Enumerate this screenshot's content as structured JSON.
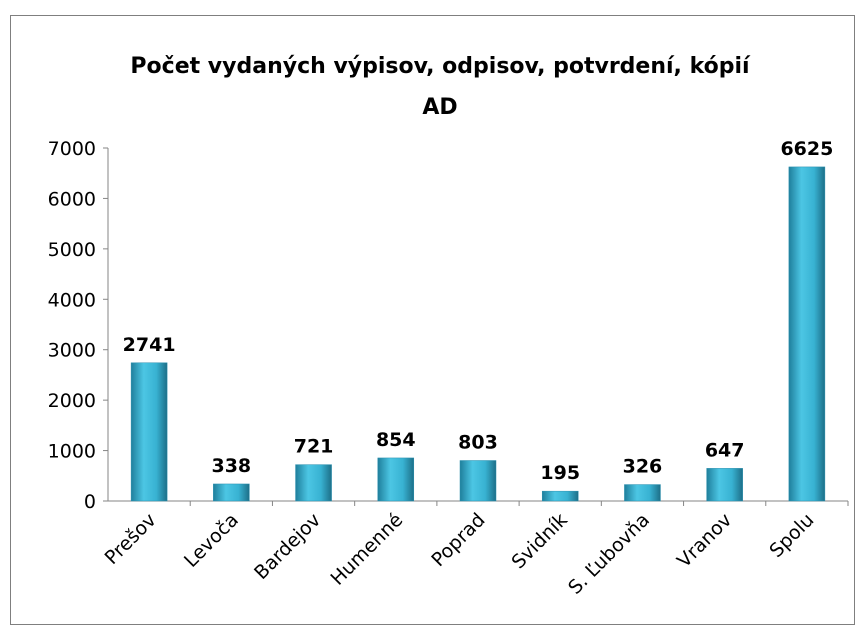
{
  "chart_data": {
    "type": "bar",
    "title": [
      "Počet vydaných výpisov, odpisov, potvrdení, kópií",
      "AD"
    ],
    "categories": [
      "Prešov",
      "Levoča",
      "Bardejov",
      "Humenné",
      "Poprad",
      "Svidník",
      "S. Ľubovňa",
      "Vranov",
      "Spolu"
    ],
    "values": [
      2741,
      338,
      721,
      854,
      803,
      195,
      326,
      647,
      6625
    ],
    "color": "#3bb6d6",
    "ylim": [
      0,
      7000
    ],
    "yticks": [
      0,
      1000,
      2000,
      3000,
      4000,
      5000,
      6000,
      7000
    ],
    "grid": false
  }
}
